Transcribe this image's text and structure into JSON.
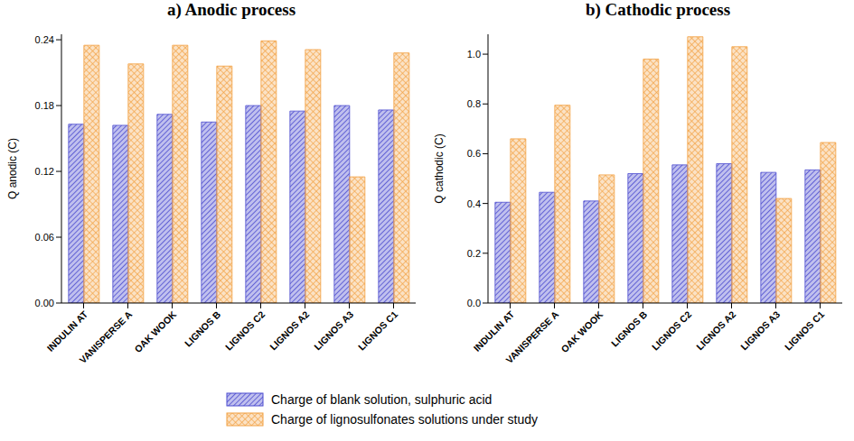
{
  "chart_data": [
    {
      "type": "bar",
      "title": "a) Anodic process",
      "ylabel": "Q anodic (C)",
      "categories": [
        "INDULIN AT",
        "VANISPERSE A",
        "OAK WOOK",
        "LIGNOS B",
        "LIGNOS C2",
        "LIGNOS A2",
        "LIGNOS A3",
        "LIGNOS C1"
      ],
      "series": [
        {
          "name": "Charge of blank solution, sulphuric acid",
          "color": "#4b4bcf",
          "values": [
            0.163,
            0.162,
            0.172,
            0.165,
            0.18,
            0.175,
            0.18,
            0.176
          ]
        },
        {
          "name": "Charge of lignosulfonates solutions under study",
          "color": "#f2a040",
          "values": [
            0.235,
            0.218,
            0.235,
            0.216,
            0.239,
            0.231,
            0.115,
            0.228
          ]
        }
      ],
      "ylim": [
        0,
        0.245
      ],
      "yticks": [
        {
          "value": 0,
          "label": "0.00"
        },
        0.06,
        0.12,
        0.18,
        0.24
      ]
    },
    {
      "type": "bar",
      "title": "b) Cathodic process",
      "ylabel": "Q cathodic (C)",
      "categories": [
        "INDULIN AT",
        "VANISPERSE A",
        "OAK WOOK",
        "LIGNOS B",
        "LIGNOS C2",
        "LIGNOS A2",
        "LIGNOS A3",
        "LIGNOS C1"
      ],
      "series": [
        {
          "name": "Charge of blank solution, sulphuric acid",
          "color": "#4b4bcf",
          "values": [
            0.405,
            0.445,
            0.41,
            0.52,
            0.555,
            0.56,
            0.525,
            0.535
          ]
        },
        {
          "name": "Charge of lignosulfonates solutions under study",
          "color": "#f2a040",
          "values": [
            0.66,
            0.795,
            0.515,
            0.98,
            1.07,
            1.03,
            0.42,
            0.645
          ]
        }
      ],
      "ylim": [
        0,
        1.08
      ],
      "yticks": [
        {
          "value": 0,
          "label": "0.0"
        },
        0.2,
        0.4,
        0.6,
        0.8,
        {
          "value": 1,
          "label": "1.0"
        }
      ]
    }
  ]
}
